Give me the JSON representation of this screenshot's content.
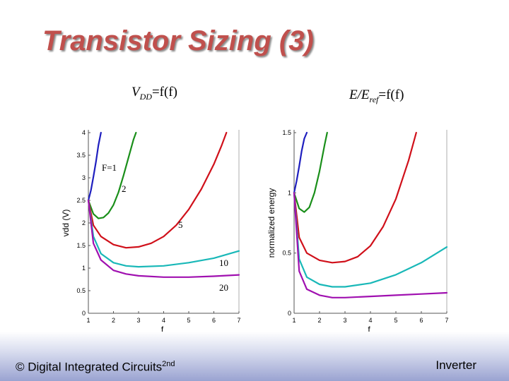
{
  "slide": {
    "title": "Transistor Sizing (3)",
    "footer_left": "© Digital Integrated Circuits",
    "footer_left_sup": "2nd",
    "footer_right": "Inverter"
  },
  "captions": {
    "left": {
      "main": "V",
      "sub": "DD",
      "rest": "=f(f)"
    },
    "right": {
      "main": "E/E",
      "sub": "ref",
      "rest": "=f(f)"
    }
  },
  "colors": {
    "F=1": "#1f1fbf",
    "F=2": "#1a8f1a",
    "F=5": "#d0101a",
    "F=10": "#19b8b8",
    "F=20": "#a010b0"
  },
  "chart_data": [
    {
      "type": "line",
      "xlabel": "f",
      "ylabel": "vdd (V)",
      "xlim": [
        1,
        7
      ],
      "ylim": [
        0,
        4
      ],
      "xticks": [
        "1",
        "2",
        "3",
        "4",
        "5",
        "6",
        "7"
      ],
      "yticks": [
        "0",
        "0.5",
        "1",
        "1.5",
        "2",
        "2.5",
        "3",
        "3.5",
        "4"
      ],
      "series": [
        {
          "name": "F=1",
          "label": "F=1",
          "x": [
            1,
            1.1,
            1.2,
            1.3,
            1.4,
            1.5
          ],
          "y": [
            2.5,
            2.72,
            3.02,
            3.35,
            3.72,
            4.0
          ]
        },
        {
          "name": "F=2",
          "label": "2",
          "x": [
            1,
            1.2,
            1.4,
            1.6,
            1.8,
            2.0,
            2.2,
            2.4,
            2.6,
            2.8,
            2.9
          ],
          "y": [
            2.5,
            2.2,
            2.1,
            2.12,
            2.22,
            2.4,
            2.68,
            3.05,
            3.45,
            3.85,
            4.0
          ]
        },
        {
          "name": "F=5",
          "label": "5",
          "x": [
            1,
            1.2,
            1.5,
            2.0,
            2.5,
            3.0,
            3.5,
            4.0,
            4.5,
            5.0,
            5.5,
            6.0,
            6.3,
            6.5
          ],
          "y": [
            2.5,
            1.95,
            1.7,
            1.52,
            1.45,
            1.47,
            1.55,
            1.7,
            1.95,
            2.3,
            2.75,
            3.3,
            3.7,
            4.0
          ]
        },
        {
          "name": "F=10",
          "label": "10",
          "x": [
            1,
            1.2,
            1.5,
            2.0,
            2.5,
            3.0,
            4.0,
            5.0,
            6.0,
            7.0
          ],
          "y": [
            2.5,
            1.7,
            1.32,
            1.12,
            1.05,
            1.03,
            1.05,
            1.12,
            1.22,
            1.38
          ]
        },
        {
          "name": "F=20",
          "label": "20",
          "x": [
            1,
            1.2,
            1.5,
            2.0,
            2.5,
            3.0,
            4.0,
            5.0,
            6.0,
            7.0
          ],
          "y": [
            2.5,
            1.55,
            1.18,
            0.95,
            0.87,
            0.83,
            0.8,
            0.8,
            0.82,
            0.85
          ]
        }
      ]
    },
    {
      "type": "line",
      "xlabel": "f",
      "ylabel": "normalized energy",
      "xlim": [
        1,
        7
      ],
      "ylim": [
        0,
        1.5
      ],
      "xticks": [
        "1",
        "2",
        "3",
        "4",
        "5",
        "6",
        "7"
      ],
      "yticks": [
        "0",
        "0.5",
        "1",
        "1.5"
      ],
      "series": [
        {
          "name": "F=1",
          "x": [
            1,
            1.1,
            1.2,
            1.3,
            1.4,
            1.5
          ],
          "y": [
            1.0,
            1.1,
            1.22,
            1.35,
            1.45,
            1.5
          ]
        },
        {
          "name": "F=2",
          "x": [
            1,
            1.2,
            1.4,
            1.6,
            1.8,
            2.0,
            2.2,
            2.3
          ],
          "y": [
            1.0,
            0.87,
            0.84,
            0.88,
            1.0,
            1.18,
            1.4,
            1.5
          ]
        },
        {
          "name": "F=5",
          "x": [
            1,
            1.2,
            1.5,
            2.0,
            2.5,
            3.0,
            3.5,
            4.0,
            4.5,
            5.0,
            5.5,
            5.8
          ],
          "y": [
            1.0,
            0.63,
            0.5,
            0.44,
            0.42,
            0.43,
            0.47,
            0.56,
            0.72,
            0.95,
            1.27,
            1.5
          ]
        },
        {
          "name": "F=10",
          "x": [
            1,
            1.2,
            1.5,
            2.0,
            2.5,
            3.0,
            4.0,
            5.0,
            6.0,
            7.0
          ],
          "y": [
            1.0,
            0.45,
            0.3,
            0.24,
            0.22,
            0.22,
            0.25,
            0.32,
            0.42,
            0.55
          ]
        },
        {
          "name": "F=20",
          "x": [
            1,
            1.2,
            1.5,
            2.0,
            2.5,
            3.0,
            4.0,
            5.0,
            6.0,
            7.0
          ],
          "y": [
            1.0,
            0.35,
            0.2,
            0.15,
            0.13,
            0.13,
            0.14,
            0.15,
            0.16,
            0.17
          ]
        }
      ]
    }
  ]
}
